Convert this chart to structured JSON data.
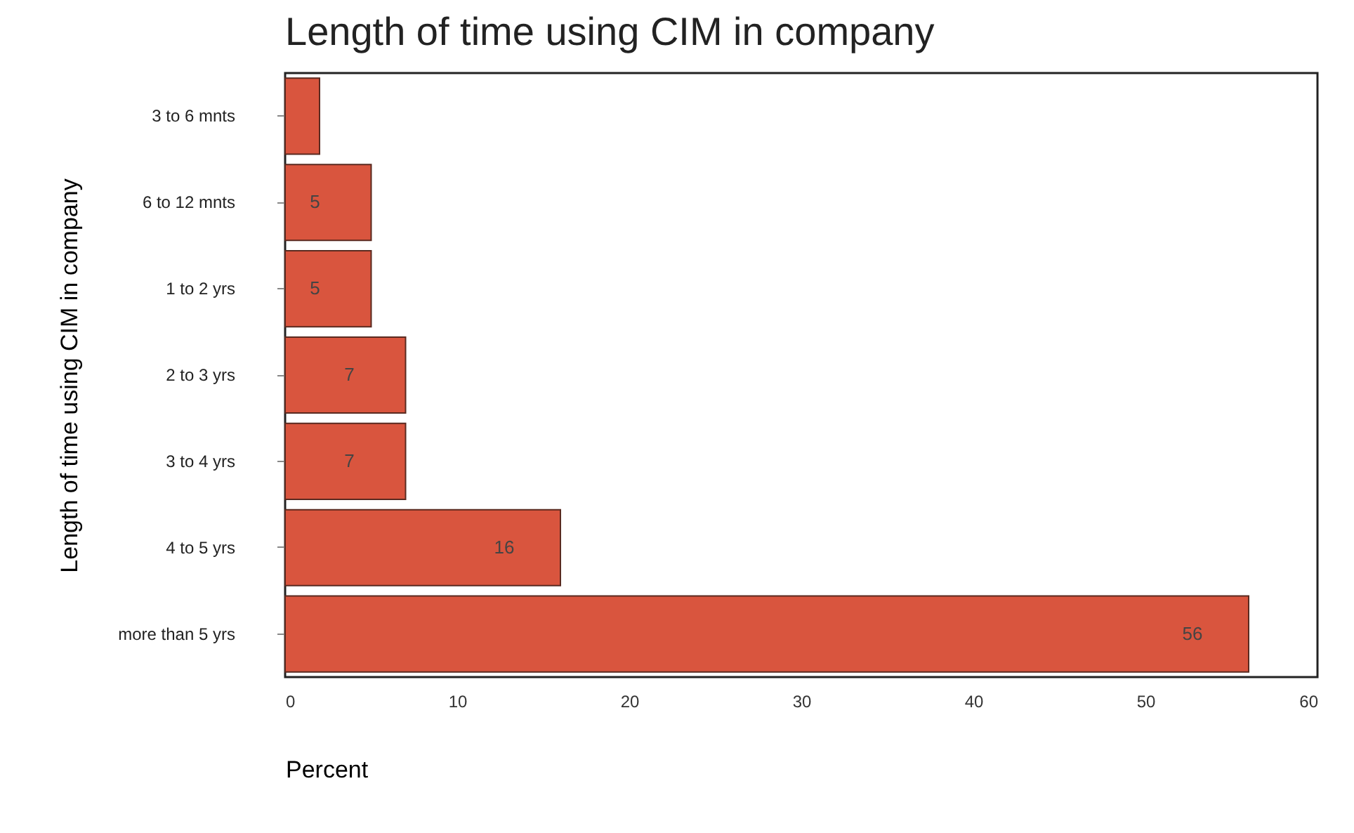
{
  "chart_data": {
    "type": "bar",
    "orientation": "horizontal",
    "title": "Length of time using CIM in company",
    "xlabel": "Percent",
    "ylabel": "Length of time using CIM in company",
    "categories": [
      "3 to 6 mnts",
      "6 to 12 mnts",
      "1 to 2 yrs",
      "2 to 3 yrs",
      "3 to 4 yrs",
      "4 to 5 yrs",
      "more than 5 yrs"
    ],
    "values": [
      2,
      5,
      5,
      7,
      7,
      16,
      56
    ],
    "value_labels": [
      null,
      "5",
      "5",
      "7",
      "7",
      "16",
      "56"
    ],
    "color": "#d9553e",
    "xlim": [
      0,
      60
    ],
    "xticks": [
      0,
      10,
      20,
      30,
      40,
      50,
      60
    ],
    "grid": false
  }
}
